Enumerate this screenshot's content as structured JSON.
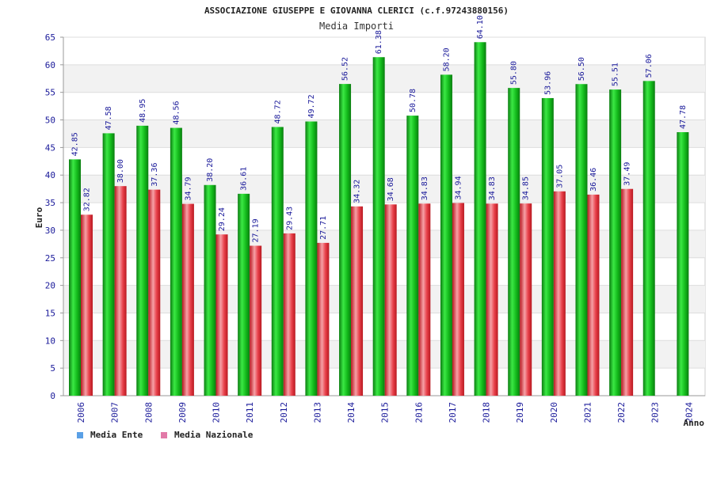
{
  "chart_data": {
    "type": "bar",
    "title": "ASSOCIAZIONE GIUSEPPE E GIOVANNA CLERICI (c.f.97243880156)",
    "subtitle": "Media Importi",
    "ylabel": "Euro",
    "xlabel": "Anno",
    "ylim": [
      0,
      65
    ],
    "ytick_step": 5,
    "grid": "horizontal bands",
    "legend_position": "bottom-left",
    "categories": [
      "2006",
      "2007",
      "2008",
      "2009",
      "2010",
      "2011",
      "2012",
      "2013",
      "2014",
      "2015",
      "2016",
      "2017",
      "2018",
      "2019",
      "2020",
      "2021",
      "2022",
      "2023",
      "2024"
    ],
    "series": [
      {
        "name": "Media Ente",
        "legend_color": "#5aa0e6",
        "bar_color": "#16c21e",
        "values": [
          42.85,
          47.58,
          48.95,
          48.56,
          38.2,
          36.61,
          48.72,
          49.72,
          56.52,
          61.38,
          50.78,
          58.2,
          64.1,
          55.8,
          53.96,
          56.5,
          55.51,
          57.06,
          47.78
        ],
        "labels": [
          "42.85",
          "47.58",
          "48.95",
          "48.56",
          "38.20",
          "36.61",
          "48.72",
          "49.72",
          "56.52",
          "61.38",
          "50.78",
          "58.20",
          "64.10",
          "55.80",
          "53.96",
          "56.50",
          "55.51",
          "57.06",
          "47.78"
        ]
      },
      {
        "name": "Media Nazionale",
        "legend_color": "#e27aa8",
        "bar_color": "#e8303a",
        "values": [
          32.82,
          38.0,
          37.36,
          34.79,
          29.24,
          27.19,
          29.43,
          27.71,
          34.32,
          34.68,
          34.83,
          34.94,
          34.83,
          34.85,
          37.05,
          36.46,
          37.49,
          null,
          null
        ],
        "labels": [
          "32.82",
          "38.00",
          "37.36",
          "34.79",
          "29.24",
          "27.19",
          "29.43",
          "27.71",
          "34.32",
          "34.68",
          "34.83",
          "34.94",
          "34.83",
          "34.85",
          "37.05",
          "36.46",
          "37.49",
          null,
          null
        ]
      }
    ]
  }
}
